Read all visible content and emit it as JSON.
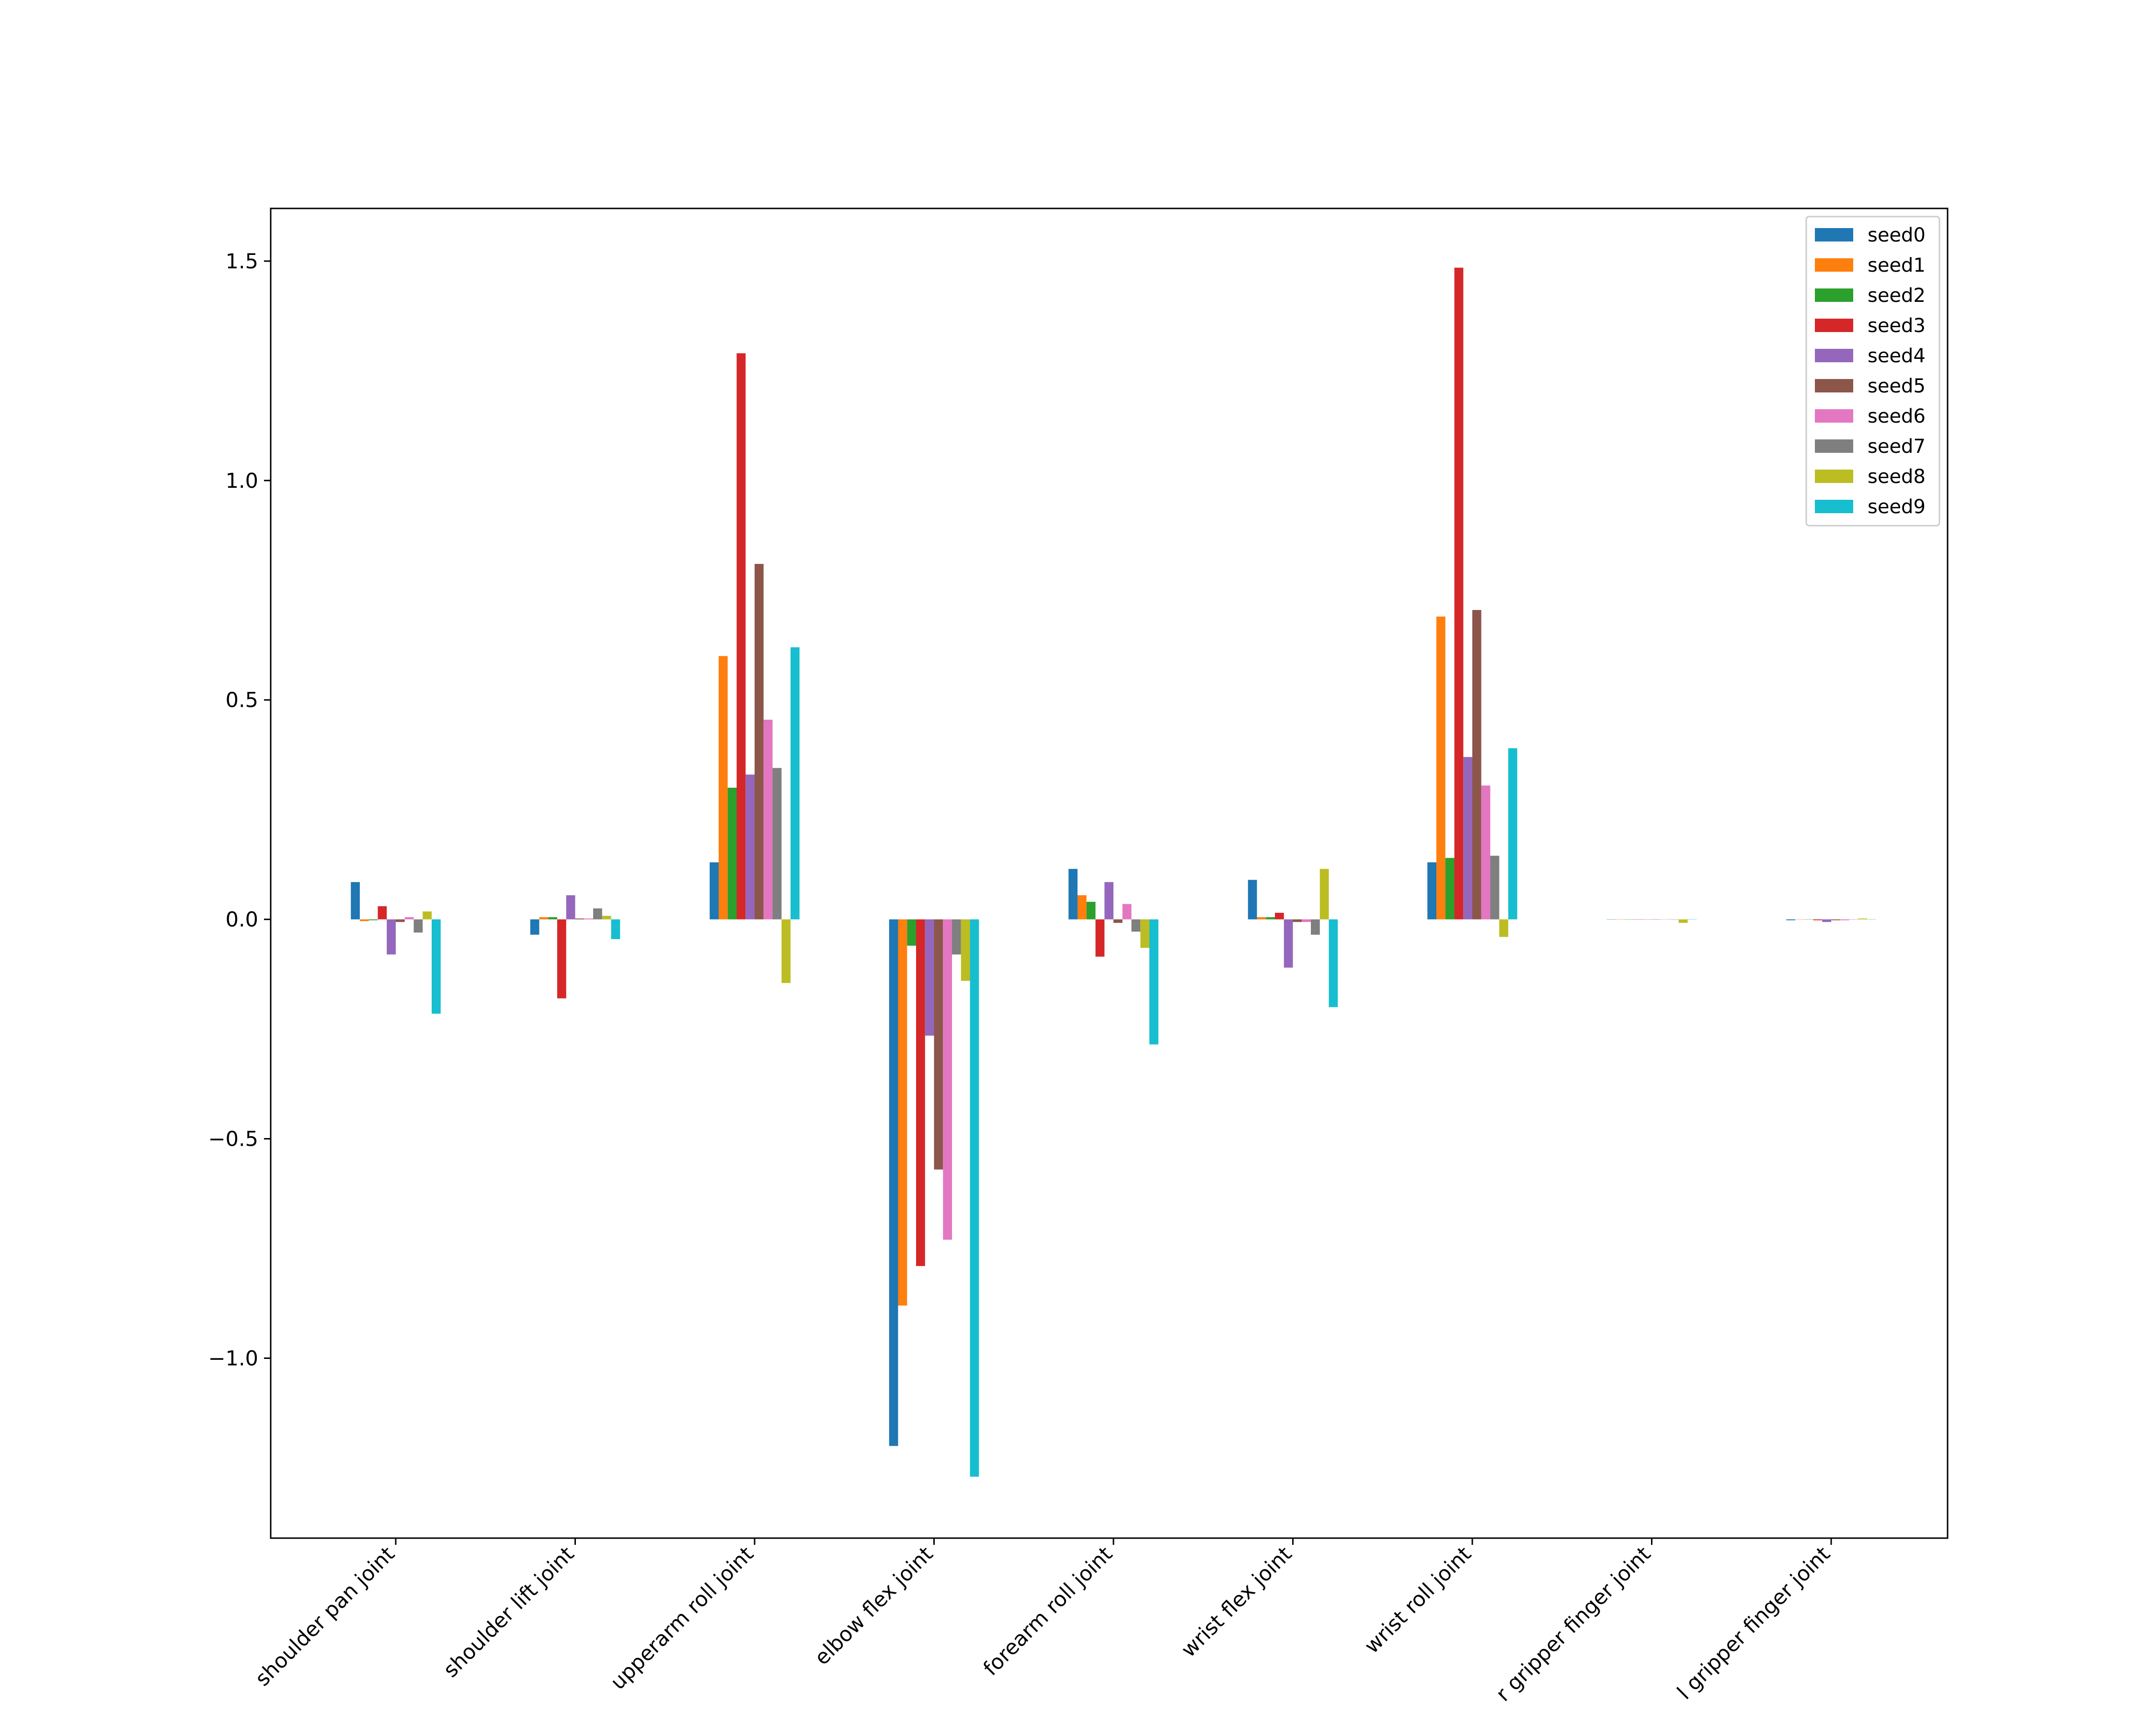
{
  "chart_data": {
    "type": "bar",
    "title": "",
    "xlabel": "",
    "ylabel": "",
    "ylim": [
      -1.41,
      1.62
    ],
    "yticks": [
      -1.0,
      -0.5,
      0.0,
      0.5,
      1.0,
      1.5
    ],
    "ytick_labels": [
      "−1.0",
      "−0.5",
      "0.0",
      "0.5",
      "1.0",
      "1.5"
    ],
    "categories": [
      "shoulder pan joint",
      "shoulder lift joint",
      "upperarm roll joint",
      "elbow flex joint",
      "forearm roll joint",
      "wrist flex joint",
      "wrist roll joint",
      "r gripper finger joint",
      "l gripper finger joint"
    ],
    "legend_position": "top-right",
    "grid": false,
    "series": [
      {
        "name": "seed0",
        "color": "#1f77b4",
        "values": [
          0.085,
          -0.035,
          0.13,
          -1.2,
          0.115,
          0.09,
          0.13,
          0.0,
          -0.002
        ]
      },
      {
        "name": "seed1",
        "color": "#ff7f0e",
        "values": [
          -0.004,
          0.005,
          0.6,
          -0.88,
          0.055,
          0.005,
          0.69,
          0.0,
          0.0
        ]
      },
      {
        "name": "seed2",
        "color": "#2ca02c",
        "values": [
          -0.002,
          0.005,
          0.3,
          -0.06,
          0.04,
          0.005,
          0.14,
          0.0,
          0.0
        ]
      },
      {
        "name": "seed3",
        "color": "#d62728",
        "values": [
          0.03,
          -0.18,
          1.29,
          -0.79,
          -0.085,
          0.015,
          1.485,
          0.0,
          -0.002
        ]
      },
      {
        "name": "seed4",
        "color": "#9467bd",
        "values": [
          -0.08,
          0.055,
          0.33,
          -0.265,
          0.085,
          -0.11,
          0.37,
          0.0,
          -0.006
        ]
      },
      {
        "name": "seed5",
        "color": "#8c564b",
        "values": [
          -0.006,
          0.002,
          0.81,
          -0.57,
          -0.008,
          -0.006,
          0.705,
          0.0,
          -0.002
        ]
      },
      {
        "name": "seed6",
        "color": "#e377c2",
        "values": [
          0.005,
          0.002,
          0.455,
          -0.73,
          0.035,
          -0.006,
          0.305,
          0.0,
          -0.002
        ]
      },
      {
        "name": "seed7",
        "color": "#7f7f7f",
        "values": [
          -0.03,
          0.025,
          0.345,
          -0.08,
          -0.028,
          -0.035,
          0.145,
          0.0,
          0.0
        ]
      },
      {
        "name": "seed8",
        "color": "#bcbd22",
        "values": [
          0.018,
          0.008,
          -0.145,
          -0.14,
          -0.065,
          0.115,
          -0.04,
          -0.008,
          0.002
        ]
      },
      {
        "name": "seed9",
        "color": "#17becf",
        "values": [
          -0.215,
          -0.045,
          0.62,
          -1.27,
          -0.285,
          -0.2,
          0.39,
          0.0,
          0.0
        ]
      }
    ]
  }
}
